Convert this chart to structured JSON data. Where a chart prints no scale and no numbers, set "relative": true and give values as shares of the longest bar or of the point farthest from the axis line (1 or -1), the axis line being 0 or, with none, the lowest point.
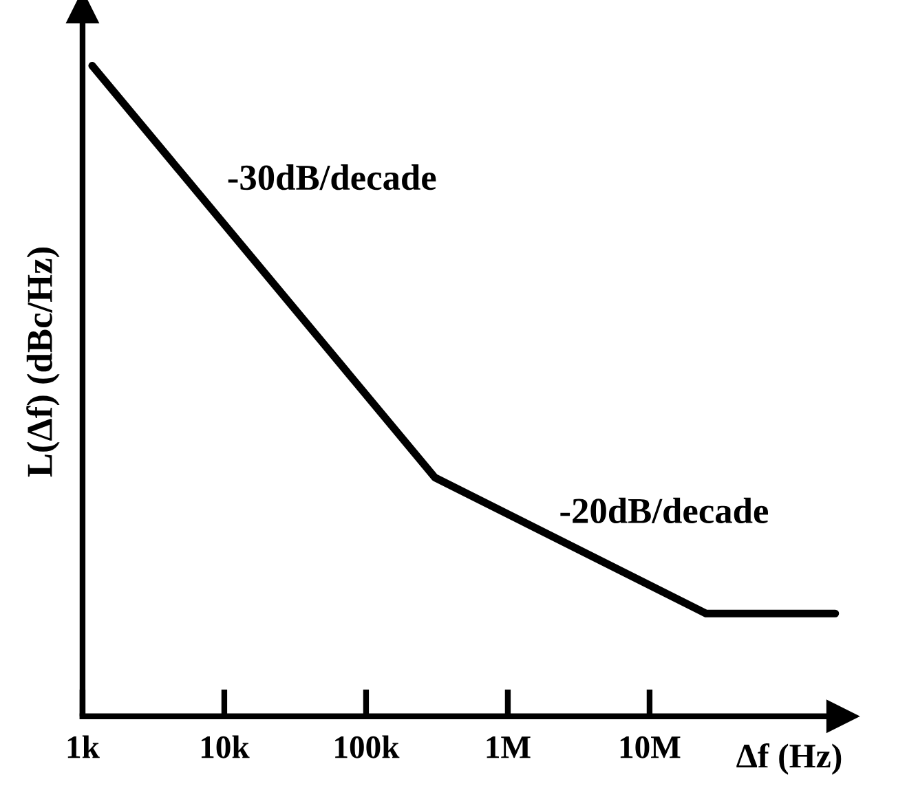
{
  "chart_data": {
    "type": "line",
    "relative": true,
    "log": "x",
    "xlabel": "Δf (Hz)",
    "ylabel": "L(Δf) (dBc/Hz)",
    "xlim": [
      1000,
      230000000
    ],
    "xticks": [
      {
        "value": 1000,
        "label": "1k"
      },
      {
        "value": 10000,
        "label": "10k"
      },
      {
        "value": 100000,
        "label": "100k"
      },
      {
        "value": 1000000,
        "label": "1M"
      },
      {
        "value": 10000000,
        "label": "10M"
      }
    ],
    "x": [
      1170,
      306000,
      25000000,
      204000000
    ],
    "series": [
      {
        "color": "#000000",
        "values": [
          1,
          0.367,
          0.158,
          0.158
        ]
      }
    ],
    "annotations": [
      "-30dB/decade",
      "-20dB/decade"
    ],
    "grid": false,
    "legend": false,
    "marker": "none",
    "line_style": "solid"
  }
}
